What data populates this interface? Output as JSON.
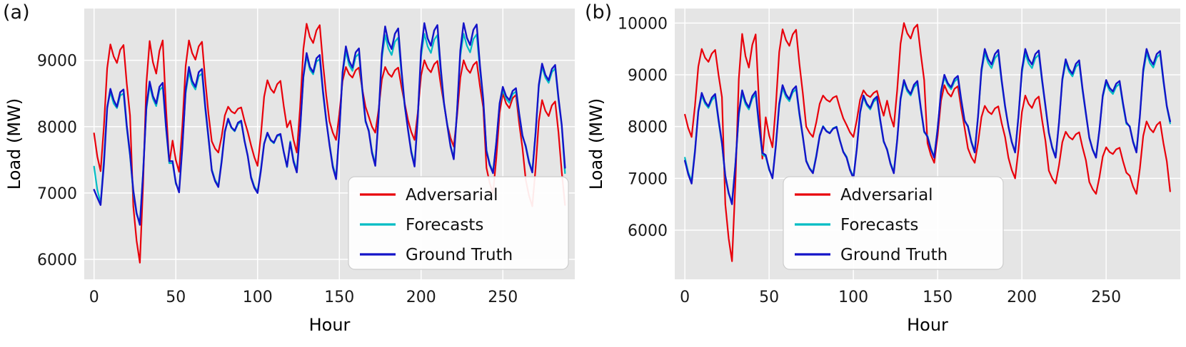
{
  "colors": {
    "adversarial": "#e8000b",
    "forecasts": "#00bdc4",
    "ground_truth": "#1414c8",
    "plot_bg": "#e5e5e5",
    "grid": "#ffffff",
    "tick_text": "#1a1a1a",
    "label_text": "#000000",
    "legend_bg": "#ffffff",
    "legend_border": "#cccccc"
  },
  "legend": {
    "items": [
      {
        "label": "Adversarial",
        "series": "adversarial"
      },
      {
        "label": "Forecasts",
        "series": "forecasts"
      },
      {
        "label": "Ground Truth",
        "series": "ground_truth"
      }
    ]
  },
  "chart_data": [
    {
      "type": "line",
      "tag": "(a)",
      "xlabel": "Hour",
      "ylabel": "Load (MW)",
      "x_start": 0,
      "x_step": 2,
      "xlim": [
        -6,
        294
      ],
      "ylim": [
        5700,
        9780
      ],
      "xticks": [
        0,
        50,
        100,
        150,
        200,
        250
      ],
      "yticks": [
        6000,
        7000,
        8000,
        9000
      ],
      "grid": true,
      "legend_position": "lower right",
      "series": {
        "adversarial": [
          7900,
          7550,
          7330,
          8000,
          8880,
          9240,
          9060,
          8960,
          9160,
          9230,
          8650,
          8170,
          6800,
          6280,
          5950,
          7130,
          8650,
          9290,
          8970,
          8800,
          9140,
          9300,
          8280,
          7450,
          7790,
          7500,
          7320,
          8010,
          8910,
          9300,
          9110,
          9010,
          9210,
          9280,
          8690,
          8190,
          7780,
          7670,
          7610,
          7850,
          8170,
          8300,
          8230,
          8200,
          8270,
          8290,
          8090,
          7920,
          7720,
          7540,
          7410,
          7860,
          8450,
          8700,
          8570,
          8510,
          8640,
          8690,
          8310,
          7990,
          8090,
          7800,
          7610,
          8290,
          9170,
          9550,
          9350,
          9260,
          9450,
          9530,
          8960,
          8470,
          8080,
          7910,
          7800,
          8190,
          8690,
          8900,
          8790,
          8740,
          8850,
          8890,
          8570,
          8300,
          8150,
          8000,
          7910,
          8250,
          8710,
          8900,
          8800,
          8750,
          8850,
          8890,
          8600,
          8350,
          8100,
          7920,
          7800,
          8220,
          8770,
          9000,
          8880,
          8820,
          8940,
          8990,
          8640,
          8340,
          8030,
          7830,
          7700,
          8160,
          8740,
          9000,
          8870,
          8810,
          8930,
          8980,
          8610,
          8290,
          7380,
          7150,
          7000,
          7530,
          8210,
          8500,
          8350,
          8280,
          8430,
          8480,
          8050,
          7680,
          7200,
          6960,
          6800,
          7360,
          8080,
          8400,
          8240,
          8160,
          8320,
          8380,
          7920,
          7320,
          6820
        ],
        "forecasts": [
          7400,
          7050,
          6850,
          7500,
          8300,
          8520,
          8350,
          8280,
          8470,
          8500,
          7980,
          7560,
          7000,
          6680,
          6560,
          7320,
          8260,
          8620,
          8420,
          8310,
          8550,
          8600,
          7970,
          7450,
          7450,
          7140,
          7030,
          7720,
          8500,
          8820,
          8640,
          8560,
          8760,
          8800,
          8260,
          7810,
          7360,
          7200,
          7110,
          7500,
          7940,
          8100,
          7980,
          7930,
          8040,
          8070,
          7780,
          7550,
          7250,
          7100,
          7020,
          7360,
          7750,
          7890,
          7790,
          7750,
          7860,
          7870,
          7610,
          7390,
          7780,
          7500,
          7340,
          7970,
          8740,
          9060,
          8860,
          8790,
          8980,
          9020,
          8500,
          8080,
          7740,
          7420,
          7240,
          7930,
          8790,
          9130,
          8930,
          8840,
          9050,
          9100,
          8540,
          8070,
          7950,
          7630,
          7440,
          8160,
          9030,
          9380,
          9180,
          9080,
          9280,
          9340,
          8790,
          8300,
          7970,
          7640,
          7430,
          8170,
          9060,
          9400,
          9210,
          9110,
          9310,
          9380,
          8820,
          8330,
          8040,
          7720,
          7530,
          8240,
          9070,
          9400,
          9220,
          9120,
          9320,
          9390,
          8850,
          8380,
          7650,
          7440,
          7320,
          7780,
          8330,
          8550,
          8420,
          8360,
          8490,
          8530,
          8170,
          7850,
          7720,
          7480,
          7330,
          7900,
          8600,
          8900,
          8740,
          8660,
          8820,
          8880,
          8410,
          8010,
          7300
        ],
        "ground_truth": [
          7050,
          6930,
          6820,
          7430,
          8280,
          8570,
          8400,
          8300,
          8520,
          8560,
          8020,
          7590,
          7040,
          6700,
          6520,
          7290,
          8300,
          8680,
          8460,
          8350,
          8600,
          8660,
          8010,
          7480,
          7480,
          7160,
          7010,
          7690,
          8550,
          8900,
          8690,
          8600,
          8820,
          8870,
          8300,
          7840,
          7340,
          7180,
          7090,
          7470,
          7920,
          8120,
          7990,
          7940,
          8060,
          8090,
          7790,
          7560,
          7230,
          7080,
          7000,
          7330,
          7740,
          7910,
          7800,
          7760,
          7870,
          7890,
          7620,
          7400,
          7760,
          7470,
          7310,
          7950,
          8760,
          9110,
          8900,
          8820,
          9030,
          9080,
          8540,
          8100,
          7720,
          7390,
          7210,
          7920,
          8820,
          9210,
          8990,
          8890,
          9120,
          9180,
          8580,
          8090,
          7930,
          7600,
          7410,
          8150,
          9100,
          9510,
          9280,
          9170,
          9400,
          9480,
          8850,
          8330,
          7950,
          7610,
          7400,
          8160,
          9140,
          9560,
          9330,
          9220,
          9450,
          9530,
          8890,
          8360,
          8020,
          7700,
          7510,
          8230,
          9150,
          9560,
          9340,
          9230,
          9460,
          9540,
          8920,
          8410,
          7630,
          7420,
          7300,
          7760,
          8350,
          8600,
          8460,
          8400,
          8540,
          8580,
          8200,
          7870,
          7700,
          7460,
          7310,
          7890,
          8630,
          8950,
          8780,
          8700,
          8870,
          8930,
          8440,
          8030,
          7380
        ]
      }
    },
    {
      "type": "line",
      "tag": "(b)",
      "xlabel": "Hour",
      "ylabel": "Load (MW)",
      "x_start": 0,
      "x_step": 2,
      "xlim": [
        -6,
        294
      ],
      "ylim": [
        5050,
        10280
      ],
      "xticks": [
        0,
        50,
        100,
        150,
        200,
        250
      ],
      "yticks": [
        6000,
        7000,
        8000,
        9000,
        10000
      ],
      "grid": true,
      "legend_position": "lower center-right",
      "series": {
        "adversarial": [
          8230,
          7970,
          7800,
          8400,
          9160,
          9500,
          9330,
          9250,
          9410,
          9480,
          8990,
          8570,
          6500,
          5840,
          5400,
          6940,
          8920,
          9790,
          9360,
          9140,
          9580,
          9780,
          8480,
          7380,
          8180,
          7830,
          7600,
          8410,
          9440,
          9880,
          9670,
          9560,
          9780,
          9870,
          9210,
          8640,
          8000,
          7880,
          7800,
          8080,
          8440,
          8600,
          8520,
          8480,
          8560,
          8590,
          8360,
          8160,
          8030,
          7890,
          7800,
          8120,
          8520,
          8700,
          8610,
          8570,
          8650,
          8690,
          8430,
          8210,
          8500,
          8200,
          8000,
          8700,
          9600,
          10000,
          9800,
          9700,
          9900,
          9970,
          9400,
          8900,
          7680,
          7450,
          7300,
          7830,
          8500,
          8800,
          8650,
          8580,
          8730,
          8780,
          8350,
          7980,
          7580,
          7410,
          7300,
          7690,
          8180,
          8400,
          8290,
          8240,
          8350,
          8390,
          8070,
          7800,
          7400,
          7160,
          7000,
          7560,
          8280,
          8600,
          8440,
          8360,
          8520,
          8580,
          8120,
          7720,
          7150,
          7000,
          6900,
          7250,
          7700,
          7900,
          7800,
          7750,
          7850,
          7890,
          7600,
          7350,
          6930,
          6790,
          6700,
          7020,
          7420,
          7600,
          7510,
          7470,
          7560,
          7590,
          7330,
          7110,
          7050,
          6840,
          6700,
          7190,
          7820,
          8100,
          7960,
          7890,
          8030,
          8090,
          7680,
          7330,
          6750
        ],
        "forecasts": [
          7400,
          7120,
          6950,
          7550,
          8280,
          8600,
          8440,
          8360,
          8510,
          8580,
          8090,
          7660,
          7020,
          6700,
          6550,
          7300,
          8220,
          8640,
          8430,
          8330,
          8540,
          8620,
          8000,
          7460,
          7420,
          7160,
          7020,
          7660,
          8400,
          8740,
          8570,
          8490,
          8660,
          8720,
          8220,
          7780,
          7350,
          7200,
          7120,
          7450,
          7840,
          8010,
          7920,
          7880,
          7970,
          8000,
          7740,
          7520,
          7420,
          7180,
          7030,
          7580,
          8260,
          8560,
          8410,
          8330,
          8480,
          8540,
          8090,
          7700,
          7570,
          7300,
          7130,
          7750,
          8510,
          8850,
          8680,
          8600,
          8760,
          8830,
          8330,
          7890,
          7820,
          7580,
          7420,
          7980,
          8650,
          8950,
          8800,
          8720,
          8870,
          8930,
          8490,
          8100,
          8020,
          7720,
          7520,
          8210,
          9050,
          9420,
          9230,
          9130,
          9320,
          9400,
          8860,
          8370,
          8010,
          7710,
          7510,
          8210,
          9040,
          9410,
          9220,
          9130,
          9320,
          9390,
          8860,
          8370,
          7890,
          7610,
          7420,
          8080,
          8880,
          9240,
          9060,
          8970,
          9150,
          9220,
          8690,
          8230,
          7790,
          7560,
          7420,
          7940,
          8570,
          8840,
          8700,
          8630,
          8770,
          8830,
          8410,
          8050,
          8010,
          7720,
          7520,
          8210,
          9040,
          9420,
          9230,
          9140,
          9330,
          9400,
          8860,
          8380,
          8060
        ],
        "ground_truth": [
          7340,
          7080,
          6900,
          7510,
          8300,
          8650,
          8480,
          8390,
          8560,
          8630,
          8130,
          7690,
          7050,
          6720,
          6500,
          7270,
          8260,
          8700,
          8480,
          8370,
          8590,
          8680,
          8040,
          7490,
          7450,
          7180,
          7000,
          7630,
          8440,
          8800,
          8620,
          8530,
          8710,
          8780,
          8260,
          7810,
          7330,
          7190,
          7100,
          7420,
          7820,
          8000,
          7910,
          7870,
          7960,
          7990,
          7730,
          7510,
          7400,
          7160,
          7000,
          7560,
          8280,
          8600,
          8440,
          8360,
          8520,
          8580,
          8120,
          7720,
          7550,
          7280,
          7100,
          7730,
          8540,
          8900,
          8720,
          8630,
          8810,
          8880,
          8360,
          7910,
          7800,
          7560,
          7400,
          7960,
          8680,
          9000,
          8840,
          8760,
          8920,
          8980,
          8520,
          8120,
          8000,
          7700,
          7500,
          8200,
          9100,
          9500,
          9300,
          9200,
          9400,
          9480,
          8900,
          8400,
          8000,
          7700,
          7500,
          8200,
          9100,
          9500,
          9300,
          9200,
          9400,
          9470,
          8900,
          8400,
          7880,
          7590,
          7400,
          8070,
          8920,
          9300,
          9110,
          9020,
          9210,
          9280,
          8730,
          8260,
          7780,
          7550,
          7400,
          7930,
          8600,
          8900,
          8750,
          8680,
          8830,
          8880,
          8450,
          8080,
          8000,
          7700,
          7500,
          8200,
          9100,
          9500,
          9300,
          9200,
          9400,
          9460,
          8900,
          8400,
          8100
        ]
      }
    }
  ]
}
